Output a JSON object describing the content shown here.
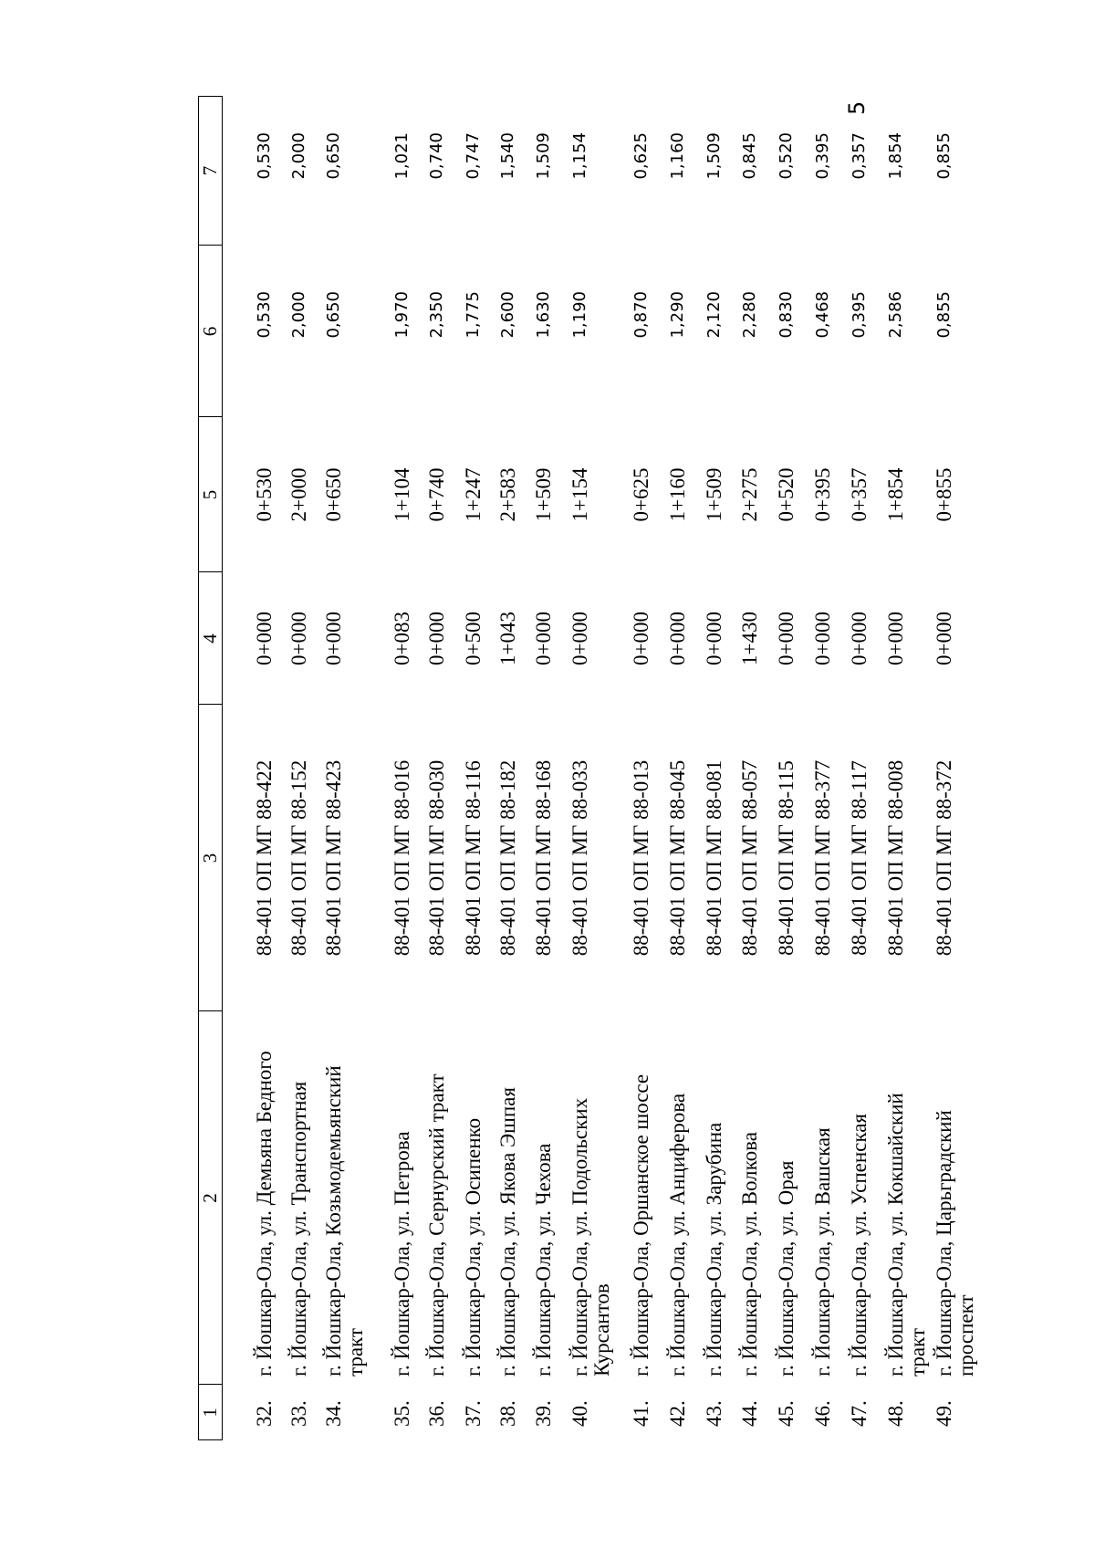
{
  "page_number": "5",
  "header": [
    "1",
    "2",
    "3",
    "4",
    "5",
    "6",
    "7"
  ],
  "rows": [
    {
      "n": "32.",
      "name": "г. Йошкар-Ола, ул. Демьяна Бедного",
      "code": "88-401 ОП МГ 88-422",
      "start": "0+000",
      "end": "0+530",
      "length": "0,530",
      "length_b": "0,530"
    },
    {
      "n": "33.",
      "name": "г. Йошкар-Ола, ул. Транспортная",
      "code": "88-401 ОП МГ 88-152",
      "start": "0+000",
      "end": "2+000",
      "length": "2,000",
      "length_b": "2,000"
    },
    {
      "n": "34.",
      "name": "г. Йошкар-Ола, Козьмодемьянский\nтракт",
      "code": "88-401 ОП МГ 88-423",
      "start": "0+000",
      "end": "0+650",
      "length": "0,650",
      "length_b": "0,650"
    },
    {
      "n": "35.",
      "name": "г. Йошкар-Ола, ул. Петрова",
      "code": "88-401 ОП МГ 88-016",
      "start": "0+083",
      "end": "1+104",
      "length": "1,970",
      "length_b": "1,021"
    },
    {
      "n": "36.",
      "name": "г. Йошкар-Ола, Сернурский тракт",
      "code": "88-401 ОП МГ 88-030",
      "start": "0+000",
      "end": "0+740",
      "length": "2,350",
      "length_b": "0,740"
    },
    {
      "n": "37.",
      "name": "г. Йошкар-Ола, ул. Осипенко",
      "code": "88-401 ОП МГ 88-116",
      "start": "0+500",
      "end": "1+247",
      "length": "1,775",
      "length_b": "0,747"
    },
    {
      "n": "38.",
      "name": "г. Йошкар-Ола, ул. Якова Эшпая",
      "code": "88-401 ОП МГ 88-182",
      "start": "1+043",
      "end": "2+583",
      "length": "2,600",
      "length_b": "1,540"
    },
    {
      "n": "39.",
      "name": "г. Йошкар-Ола, ул. Чехова",
      "code": "88-401 ОП МГ 88-168",
      "start": "0+000",
      "end": "1+509",
      "length": "1,630",
      "length_b": "1,509"
    },
    {
      "n": "40.",
      "name": "г. Йошкар-Ола, ул. Подольских\nКурсантов",
      "code": "88-401 ОП МГ 88-033",
      "start": "0+000",
      "end": "1+154",
      "length": "1,190",
      "length_b": "1,154"
    },
    {
      "n": "41.",
      "name": "г. Йошкар-Ола, Оршанское шоссе",
      "code": "88-401 ОП МГ 88-013",
      "start": "0+000",
      "end": "0+625",
      "length": "0,870",
      "length_b": "0,625"
    },
    {
      "n": "42.",
      "name": "г. Йошкар-Ола, ул. Анциферова",
      "code": "88-401 ОП МГ 88-045",
      "start": "0+000",
      "end": "1+160",
      "length": "1,290",
      "length_b": "1,160"
    },
    {
      "n": "43.",
      "name": "г. Йошкар-Ола, ул. Зарубина",
      "code": "88-401 ОП МГ 88-081",
      "start": "0+000",
      "end": "1+509",
      "length": "2,120",
      "length_b": "1,509"
    },
    {
      "n": "44.",
      "name": "г. Йошкар-Ола, ул. Волкова",
      "code": "88-401 ОП МГ 88-057",
      "start": "1+430",
      "end": "2+275",
      "length": "2,280",
      "length_b": "0,845"
    },
    {
      "n": "45.",
      "name": "г. Йошкар-Ола, ул. Орая",
      "code": "88-401 ОП МГ 88-115",
      "start": "0+000",
      "end": "0+520",
      "length": "0,830",
      "length_b": "0,520"
    },
    {
      "n": "46.",
      "name": "г. Йошкар-Ола, ул. Вашская",
      "code": "88-401 ОП МГ 88-377",
      "start": "0+000",
      "end": "0+395",
      "length": "0,468",
      "length_b": "0,395"
    },
    {
      "n": "47.",
      "name": "г. Йошкар-Ола, ул. Успенская",
      "code": "88-401 ОП МГ 88-117",
      "start": "0+000",
      "end": "0+357",
      "length": "0,395",
      "length_b": "0,357"
    },
    {
      "n": "48.",
      "name": "г. Йошкар-Ола, ул. Кокшайский\nтракт",
      "code": "88-401 ОП МГ 88-008",
      "start": "0+000",
      "end": "1+854",
      "length": "2,586",
      "length_b": "1,854"
    },
    {
      "n": "49.",
      "name": "г. Йошкар-Ола, Царьградский\nпроспект",
      "code": "88-401 ОП МГ 88-372",
      "start": "0+000",
      "end": "0+855",
      "length": "0,855",
      "length_b": "0,855"
    }
  ]
}
